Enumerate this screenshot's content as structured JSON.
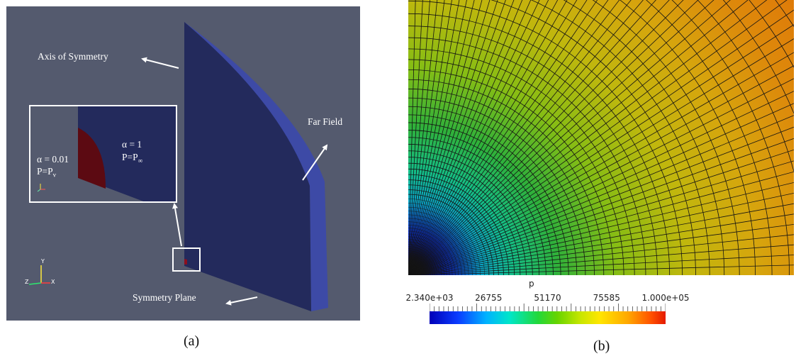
{
  "panel_a": {
    "labels": {
      "axis_of_symmetry": "Axis of Symmetry",
      "far_field": "Far Field",
      "symmetry_plane": "Symmetry Plane",
      "inner_alpha": "α = 0.01",
      "inner_p": "P=P",
      "inner_p_sub": "v",
      "outer_alpha": "α = 1",
      "outer_p": "P=P",
      "outer_p_sub": "∞"
    },
    "axes_triad": {
      "x": "X",
      "y": "Y",
      "z": "Z"
    },
    "colors": {
      "background": "#545a6e",
      "domain": "#232a5c",
      "domain_edge": "#3d4aa6",
      "bubble": "#5c0a12"
    }
  },
  "panel_b": {
    "variable": "p",
    "colorbar": {
      "min": 2340,
      "max": 100000,
      "tick_labels": [
        "2.340e+03",
        "26755",
        "51170",
        "75585",
        "1.000e+05"
      ],
      "colormap": "rainbow-jet"
    }
  },
  "captions": {
    "a": "(a)",
    "b": "(b)"
  }
}
